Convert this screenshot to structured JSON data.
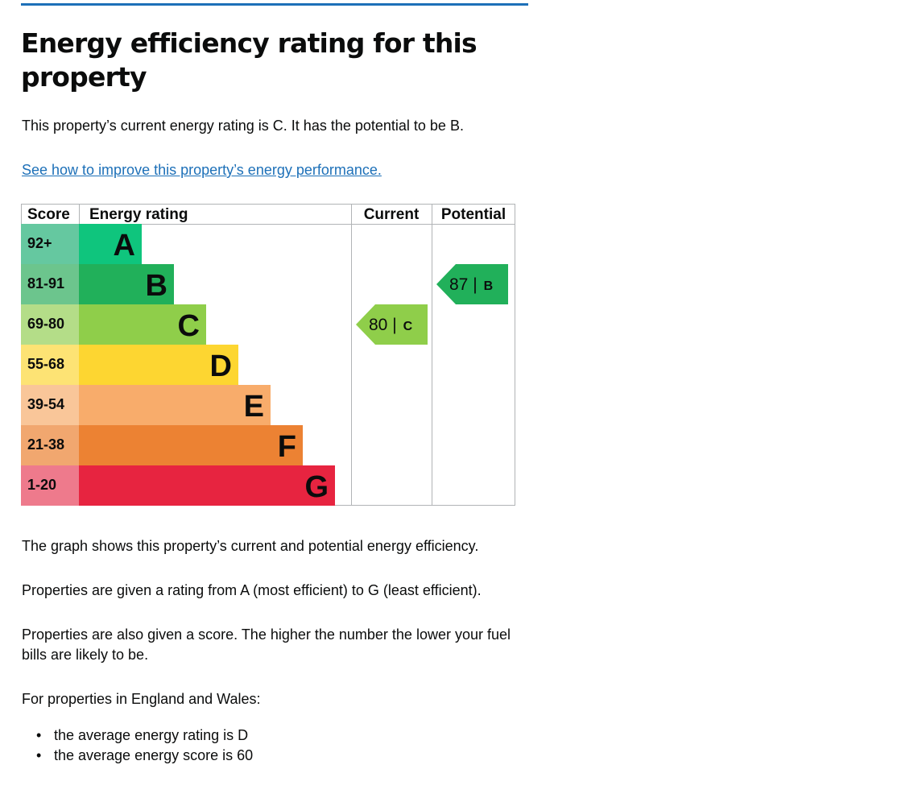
{
  "page": {
    "heading": "Energy efficiency rating for this property",
    "summary": "This property’s current energy rating is C. It has the potential to be B.",
    "improve_link": "See how to improve this property’s energy performance.",
    "explanations": [
      "The graph shows this property’s current and potential energy efficiency.",
      "Properties are given a rating from A (most efficient) to G (least efficient).",
      "Properties are also given a score. The higher the number the lower your fuel bills are likely to be.",
      "For properties in England and Wales:"
    ],
    "averages": [
      "the average energy rating is D",
      "the average energy score is 60"
    ]
  },
  "chart_data": {
    "type": "bar",
    "title": "",
    "headers": {
      "score": "Score",
      "rating": "Energy rating",
      "current": "Current",
      "potential": "Potential"
    },
    "bands": [
      {
        "letter": "A",
        "score": "92+",
        "color": "#0fc57d",
        "score_bg": "#65c8a0"
      },
      {
        "letter": "B",
        "score": "81-91",
        "color": "#21b05a",
        "score_bg": "#6cc58d"
      },
      {
        "letter": "C",
        "score": "69-80",
        "color": "#8fce4a",
        "score_bg": "#b4dd88"
      },
      {
        "letter": "D",
        "score": "55-68",
        "color": "#fdd631",
        "score_bg": "#fde374"
      },
      {
        "letter": "E",
        "score": "39-54",
        "color": "#f8ac6b",
        "score_bg": "#f9c699"
      },
      {
        "letter": "F",
        "score": "21-38",
        "color": "#ec8233",
        "score_bg": "#f1a76f"
      },
      {
        "letter": "G",
        "score": "1-20",
        "color": "#e72440",
        "score_bg": "#ee7a8c"
      }
    ],
    "current": {
      "score": 80,
      "rating": "C",
      "label": "80 |",
      "color": "#8fce4a"
    },
    "potential": {
      "score": 87,
      "rating": "B",
      "label": "87 |",
      "color": "#21b05a"
    }
  }
}
